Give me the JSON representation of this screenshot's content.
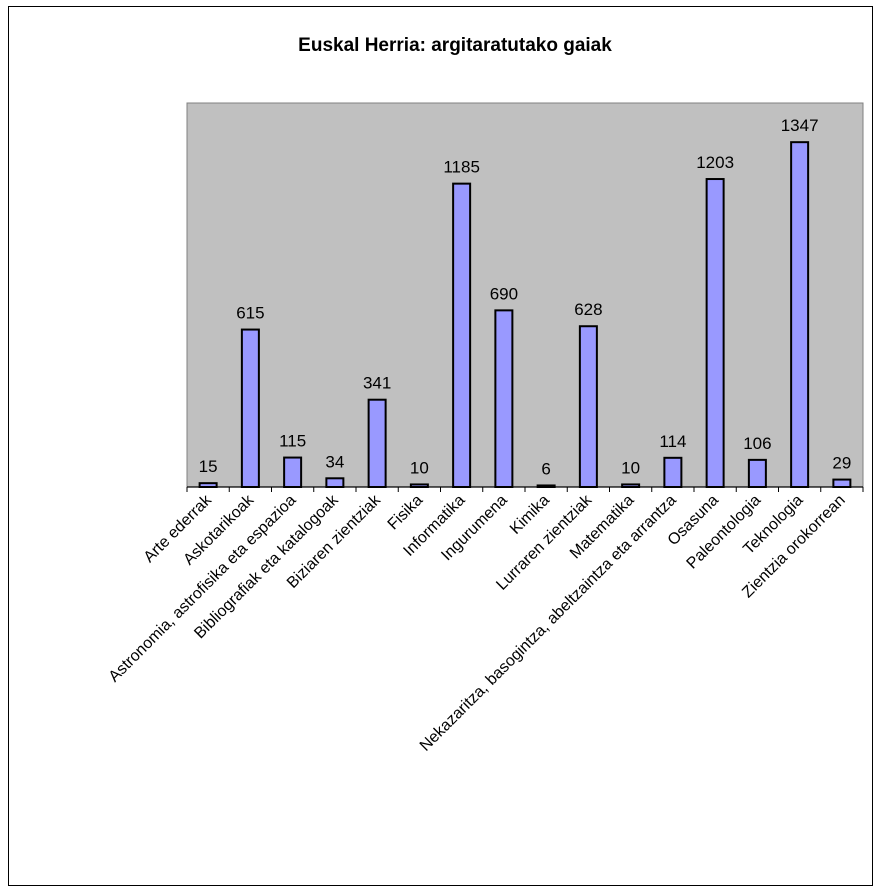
{
  "chart_data": {
    "type": "bar",
    "title": "Euskal Herria: argitaratutako gaiak",
    "xlabel": "",
    "ylabel": "",
    "categories": [
      "Arte ederrak",
      "Askotarikoak",
      "Astronomia, astrofisika eta espazioa",
      "Bibliografiak eta katalogoak",
      "Biziaren zientziak",
      "Fisika",
      "Informatika",
      "Ingurumena",
      "Kimika",
      "Lurraren zientziak",
      "Matematika",
      "Nekazaritza, basogintza, abeltzaintza eta arrantza",
      "Osasuna",
      "Paleontologia",
      "Teknologia",
      "Zientzia orokorrean"
    ],
    "values": [
      15,
      615,
      115,
      34,
      341,
      10,
      1185,
      690,
      6,
      628,
      10,
      114,
      1203,
      106,
      1347,
      29
    ],
    "data_labels": [
      "15",
      "615",
      "115",
      "34",
      "341",
      "10",
      "1185",
      "690",
      "6",
      "628",
      "10",
      "114",
      "1203",
      "106",
      "1347",
      "29"
    ],
    "ylim": [
      0,
      1500
    ],
    "grid": false,
    "legend": "none",
    "colors": {
      "bar_fill": "#9999ff",
      "bar_stroke": "#000000",
      "plot_background": "#c0c0c0"
    }
  }
}
